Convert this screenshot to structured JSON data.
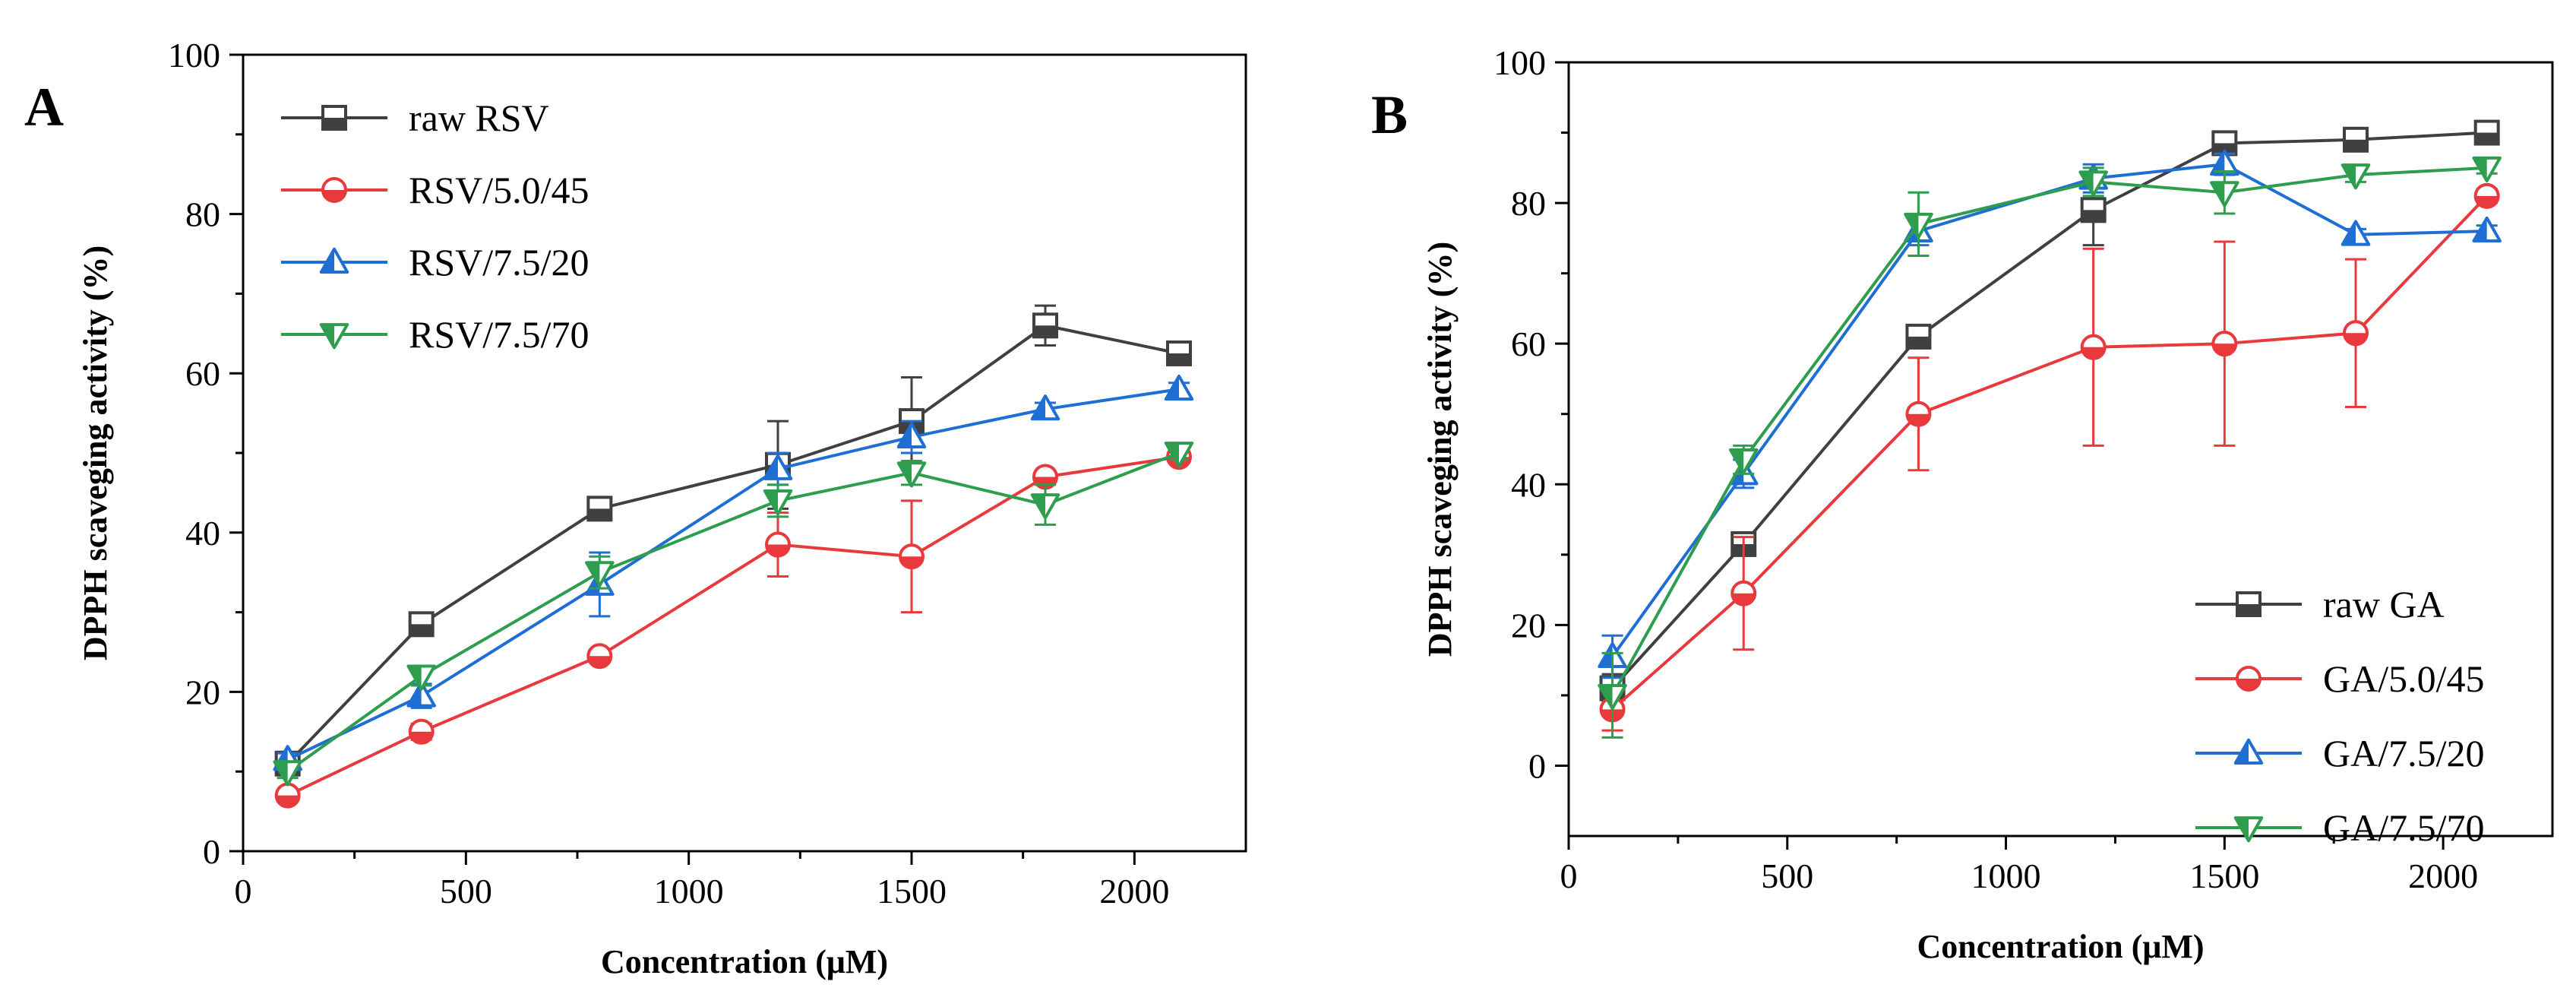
{
  "figure": {
    "panels": [
      "A",
      "B"
    ]
  },
  "chart_data": [
    {
      "type": "line",
      "panel_label": "A",
      "title": "",
      "xlabel": "Concentration (μM)",
      "ylabel": "DPPH scaveging activity (%)",
      "xlim": [
        0,
        2250
      ],
      "ylim": [
        0,
        100
      ],
      "xticks": [
        0,
        500,
        1000,
        1500,
        2000
      ],
      "yticks": [
        0,
        20,
        40,
        60,
        80,
        100
      ],
      "x": [
        100,
        400,
        800,
        1200,
        1500,
        1800,
        2100
      ],
      "legend_position": "top-left",
      "series": [
        {
          "name": "raw RSV",
          "color": "#404040",
          "marker": "square",
          "values": [
            11,
            28.5,
            43,
            48.5,
            54,
            66,
            62.5
          ],
          "errors": [
            0.5,
            1,
            0.8,
            5.5,
            5.5,
            2.5,
            1
          ]
        },
        {
          "name": "RSV/5.0/45",
          "color": "#e8393c",
          "marker": "circle",
          "values": [
            7,
            15,
            24.5,
            38.5,
            37,
            47,
            49.5
          ],
          "errors": [
            0.8,
            1,
            0.8,
            4,
            7,
            0.8,
            0.8
          ]
        },
        {
          "name": "RSV/7.5/20",
          "color": "#1f6ed4",
          "marker": "triangle-up",
          "values": [
            11.5,
            19.5,
            33.5,
            48,
            52,
            55.5,
            58
          ],
          "errors": [
            0.8,
            1.5,
            4,
            2,
            2,
            0.8,
            0.8
          ]
        },
        {
          "name": "RSV/7.5/70",
          "color": "#2e9e4e",
          "marker": "triangle-down",
          "values": [
            10,
            22,
            35,
            44,
            47.5,
            43.5,
            50
          ],
          "errors": [
            0.8,
            1.2,
            2,
            2,
            1.5,
            2.5,
            0.8
          ]
        }
      ]
    },
    {
      "type": "line",
      "panel_label": "B",
      "title": "",
      "xlabel": "Concentration (μM)",
      "ylabel": "DPPH scaveging activity (%)",
      "xlim": [
        0,
        2250
      ],
      "ylim": [
        -10,
        100
      ],
      "xticks": [
        0,
        500,
        1000,
        1500,
        2000
      ],
      "yticks": [
        0,
        20,
        40,
        60,
        80,
        100
      ],
      "x": [
        100,
        400,
        800,
        1200,
        1500,
        1800,
        2100
      ],
      "legend_position": "bottom-right",
      "series": [
        {
          "name": "raw GA",
          "color": "#404040",
          "marker": "square",
          "values": [
            11,
            31.5,
            61,
            79,
            88.5,
            89,
            90
          ],
          "errors": [
            2,
            1.5,
            1,
            5,
            1.2,
            0.8,
            0.8
          ]
        },
        {
          "name": "GA/5.0/45",
          "color": "#e8393c",
          "marker": "circle",
          "values": [
            8,
            24.5,
            50,
            59.5,
            60,
            61.5,
            81
          ],
          "errors": [
            3,
            8,
            8,
            14,
            14.5,
            10.5,
            1
          ]
        },
        {
          "name": "GA/7.5/20",
          "color": "#1f6ed4",
          "marker": "triangle-up",
          "values": [
            15.5,
            41.5,
            76,
            83.5,
            85.5,
            75.5,
            76
          ],
          "errors": [
            3,
            2,
            2,
            2,
            1.5,
            0.8,
            0.8
          ]
        },
        {
          "name": "GA/7.5/70",
          "color": "#2e9e4e",
          "marker": "triangle-down",
          "values": [
            10,
            43.5,
            77,
            83,
            81.5,
            84,
            85
          ],
          "errors": [
            6,
            2,
            4.5,
            2,
            3,
            1,
            0.8
          ]
        }
      ]
    }
  ]
}
